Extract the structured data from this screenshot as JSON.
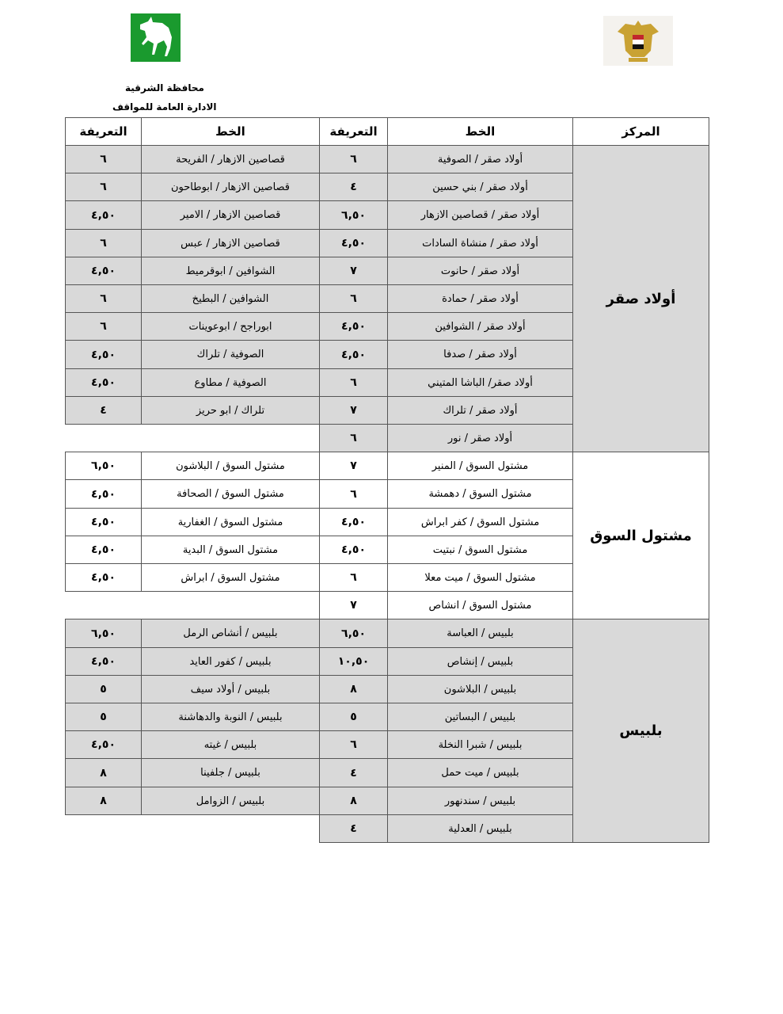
{
  "header": {
    "governorate": "محافظة الشرقية",
    "department": "الادارة العامة للمواقف",
    "logo_left": "green-horse-logo",
    "logo_right": "egypt-eagle-emblem"
  },
  "columns": {
    "markaz": "المركز",
    "line": "الخط",
    "fare": "التعريفة"
  },
  "colors": {
    "shaded": "#d9d9d9",
    "plain": "#ffffff",
    "horse_logo": "#1a9a2e"
  },
  "groups": [
    {
      "markaz": "أولاد صقر",
      "shaded": true,
      "rows": [
        {
          "line": "أولاد صقر / الصوفية",
          "fare": "٦",
          "line2": "قصاصين الازهار / الفريحة",
          "fare2": "٦"
        },
        {
          "line": "أولاد صقر / بني حسين",
          "fare": "٤",
          "line2": "قصاصين الازهار / ابوطاحون",
          "fare2": "٦"
        },
        {
          "line": "أولاد صقر / قصاصين الازهار",
          "fare": "٦,٥٠",
          "line2": "قصاصين الازهار / الامير",
          "fare2": "٤,٥٠"
        },
        {
          "line": "أولاد صقر / منشاة السادات",
          "fare": "٤,٥٠",
          "line2": "قصاصين الازهار / عبس",
          "fare2": "٦"
        },
        {
          "line": "أولاد صقر / حانوت",
          "fare": "٧",
          "line2": "الشوافين / ابوقرميط",
          "fare2": "٤,٥٠"
        },
        {
          "line": "أولاد صقر / حمادة",
          "fare": "٦",
          "line2": "الشوافين / البطيخ",
          "fare2": "٦"
        },
        {
          "line": "أولاد صقر / الشوافين",
          "fare": "٤,٥٠",
          "line2": "ابوراجح / ابوعوينات",
          "fare2": "٦"
        },
        {
          "line": "أولاد صقر / صدفا",
          "fare": "٤,٥٠",
          "line2": "الصوفية / تلراك",
          "fare2": "٤,٥٠"
        },
        {
          "line": "أولاد صقر/ الباشا المتيني",
          "fare": "٦",
          "line2": "الصوفية / مطاوع",
          "fare2": "٤,٥٠"
        },
        {
          "line": "أولاد صقر / تلراك",
          "fare": "٧",
          "line2": "تلراك / ابو حريز",
          "fare2": "٤"
        },
        {
          "line": "أولاد صقر / نور",
          "fare": "٦"
        }
      ]
    },
    {
      "markaz": "مشتول السوق",
      "shaded": false,
      "rows": [
        {
          "line": "مشتول السوق / المنير",
          "fare": "٧",
          "line2": "مشتول السوق / البلاشون",
          "fare2": "٦,٥٠"
        },
        {
          "line": "مشتول السوق / دهمشة",
          "fare": "٦",
          "line2": "مشتول السوق / الصحافة",
          "fare2": "٤,٥٠"
        },
        {
          "line": "مشتول السوق / كفر ابراش",
          "fare": "٤,٥٠",
          "line2": "مشتول السوق / الغفارية",
          "fare2": "٤,٥٠"
        },
        {
          "line": "مشتول السوق / نبتيت",
          "fare": "٤,٥٠",
          "line2": "مشتول السوق / البدية",
          "fare2": "٤,٥٠"
        },
        {
          "line": "مشتول السوق / ميت معلا",
          "fare": "٦",
          "line2": "مشتول السوق / ابراش",
          "fare2": "٤,٥٠"
        },
        {
          "line": "مشتول السوق / انشاص",
          "fare": "٧"
        }
      ]
    },
    {
      "markaz": "بلبيس",
      "shaded": true,
      "rows": [
        {
          "line": "بلبيس / العباسة",
          "fare": "٦,٥٠",
          "line2": "بلبيس / أنشاص الرمل",
          "fare2": "٦,٥٠"
        },
        {
          "line": "بلبيس / إنشاص",
          "fare": "١٠,٥٠",
          "line2": "بلبيس / كفور العايد",
          "fare2": "٤,٥٠"
        },
        {
          "line": "بلبيس / البلاشون",
          "fare": "٨",
          "line2": "بلبيس / أولاد سيف",
          "fare2": "٥"
        },
        {
          "line": "بلبيس / البساتين",
          "fare": "٥",
          "line2": "بلبيس / النوبة والدهاشنة",
          "fare2": "٥"
        },
        {
          "line": "بلبيس / شبرا النخلة",
          "fare": "٦",
          "line2": "بلبيس / غيته",
          "fare2": "٤,٥٠"
        },
        {
          "line": "بلبيس / ميت حمل",
          "fare": "٤",
          "line2": "بلبيس / جلفينا",
          "fare2": "٨"
        },
        {
          "line": "بلبيس / سندنهور",
          "fare": "٨",
          "line2": "بلبيس / الزوامل",
          "fare2": "٨"
        },
        {
          "line": "بلبيس / العدلية",
          "fare": "٤"
        }
      ]
    }
  ]
}
